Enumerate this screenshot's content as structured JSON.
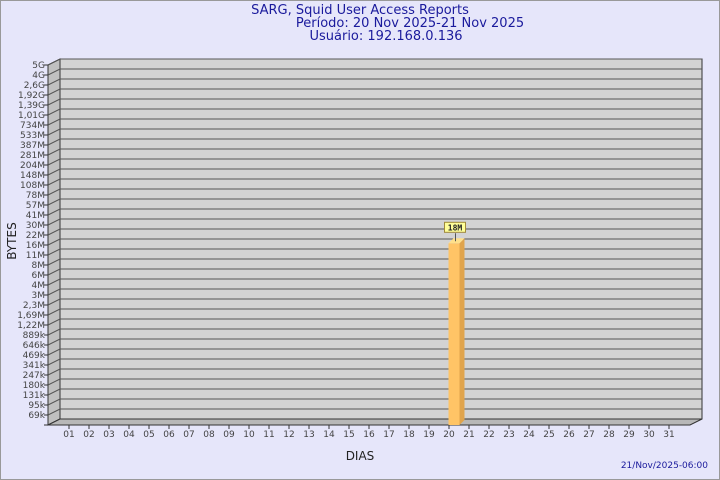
{
  "header": {
    "title": "SARG, Squid User Access Reports",
    "period": "Período: 20 Nov 2025-21 Nov 2025",
    "user": "Usuário: 192.168.0.136"
  },
  "footer": {
    "timestamp": "21/Nov/2025-06:00"
  },
  "chart_data": {
    "type": "bar",
    "xlabel": "DIAS",
    "ylabel": "BYTES",
    "categories": [
      "01",
      "02",
      "03",
      "04",
      "05",
      "06",
      "07",
      "08",
      "09",
      "10",
      "11",
      "12",
      "13",
      "14",
      "15",
      "16",
      "17",
      "18",
      "19",
      "20",
      "21",
      "22",
      "23",
      "24",
      "25",
      "26",
      "27",
      "28",
      "29",
      "30",
      "31"
    ],
    "y_ticks": [
      "5G",
      "4G",
      "2,6G",
      "1,92G",
      "1,39G",
      "1,01G",
      "734M",
      "533M",
      "387M",
      "281M",
      "204M",
      "148M",
      "108M",
      "78M",
      "57M",
      "41M",
      "30M",
      "22M",
      "16M",
      "11M",
      "8M",
      "6M",
      "4M",
      "3M",
      "2,3M",
      "1,69M",
      "1,22M",
      "889k",
      "646k",
      "469k",
      "341k",
      "247k",
      "180k",
      "131k",
      "95k",
      "69k"
    ],
    "y_scale": "log",
    "grid": true,
    "bars": [
      {
        "category": "20",
        "value": 18000000,
        "label": "18M"
      }
    ],
    "colors": {
      "bar": "#ffc466",
      "bar_side": "#e0a44c",
      "bar_top": "#ffe08a",
      "plot_bg": "#d3d3d3",
      "label_bg": "#ffff99"
    }
  }
}
